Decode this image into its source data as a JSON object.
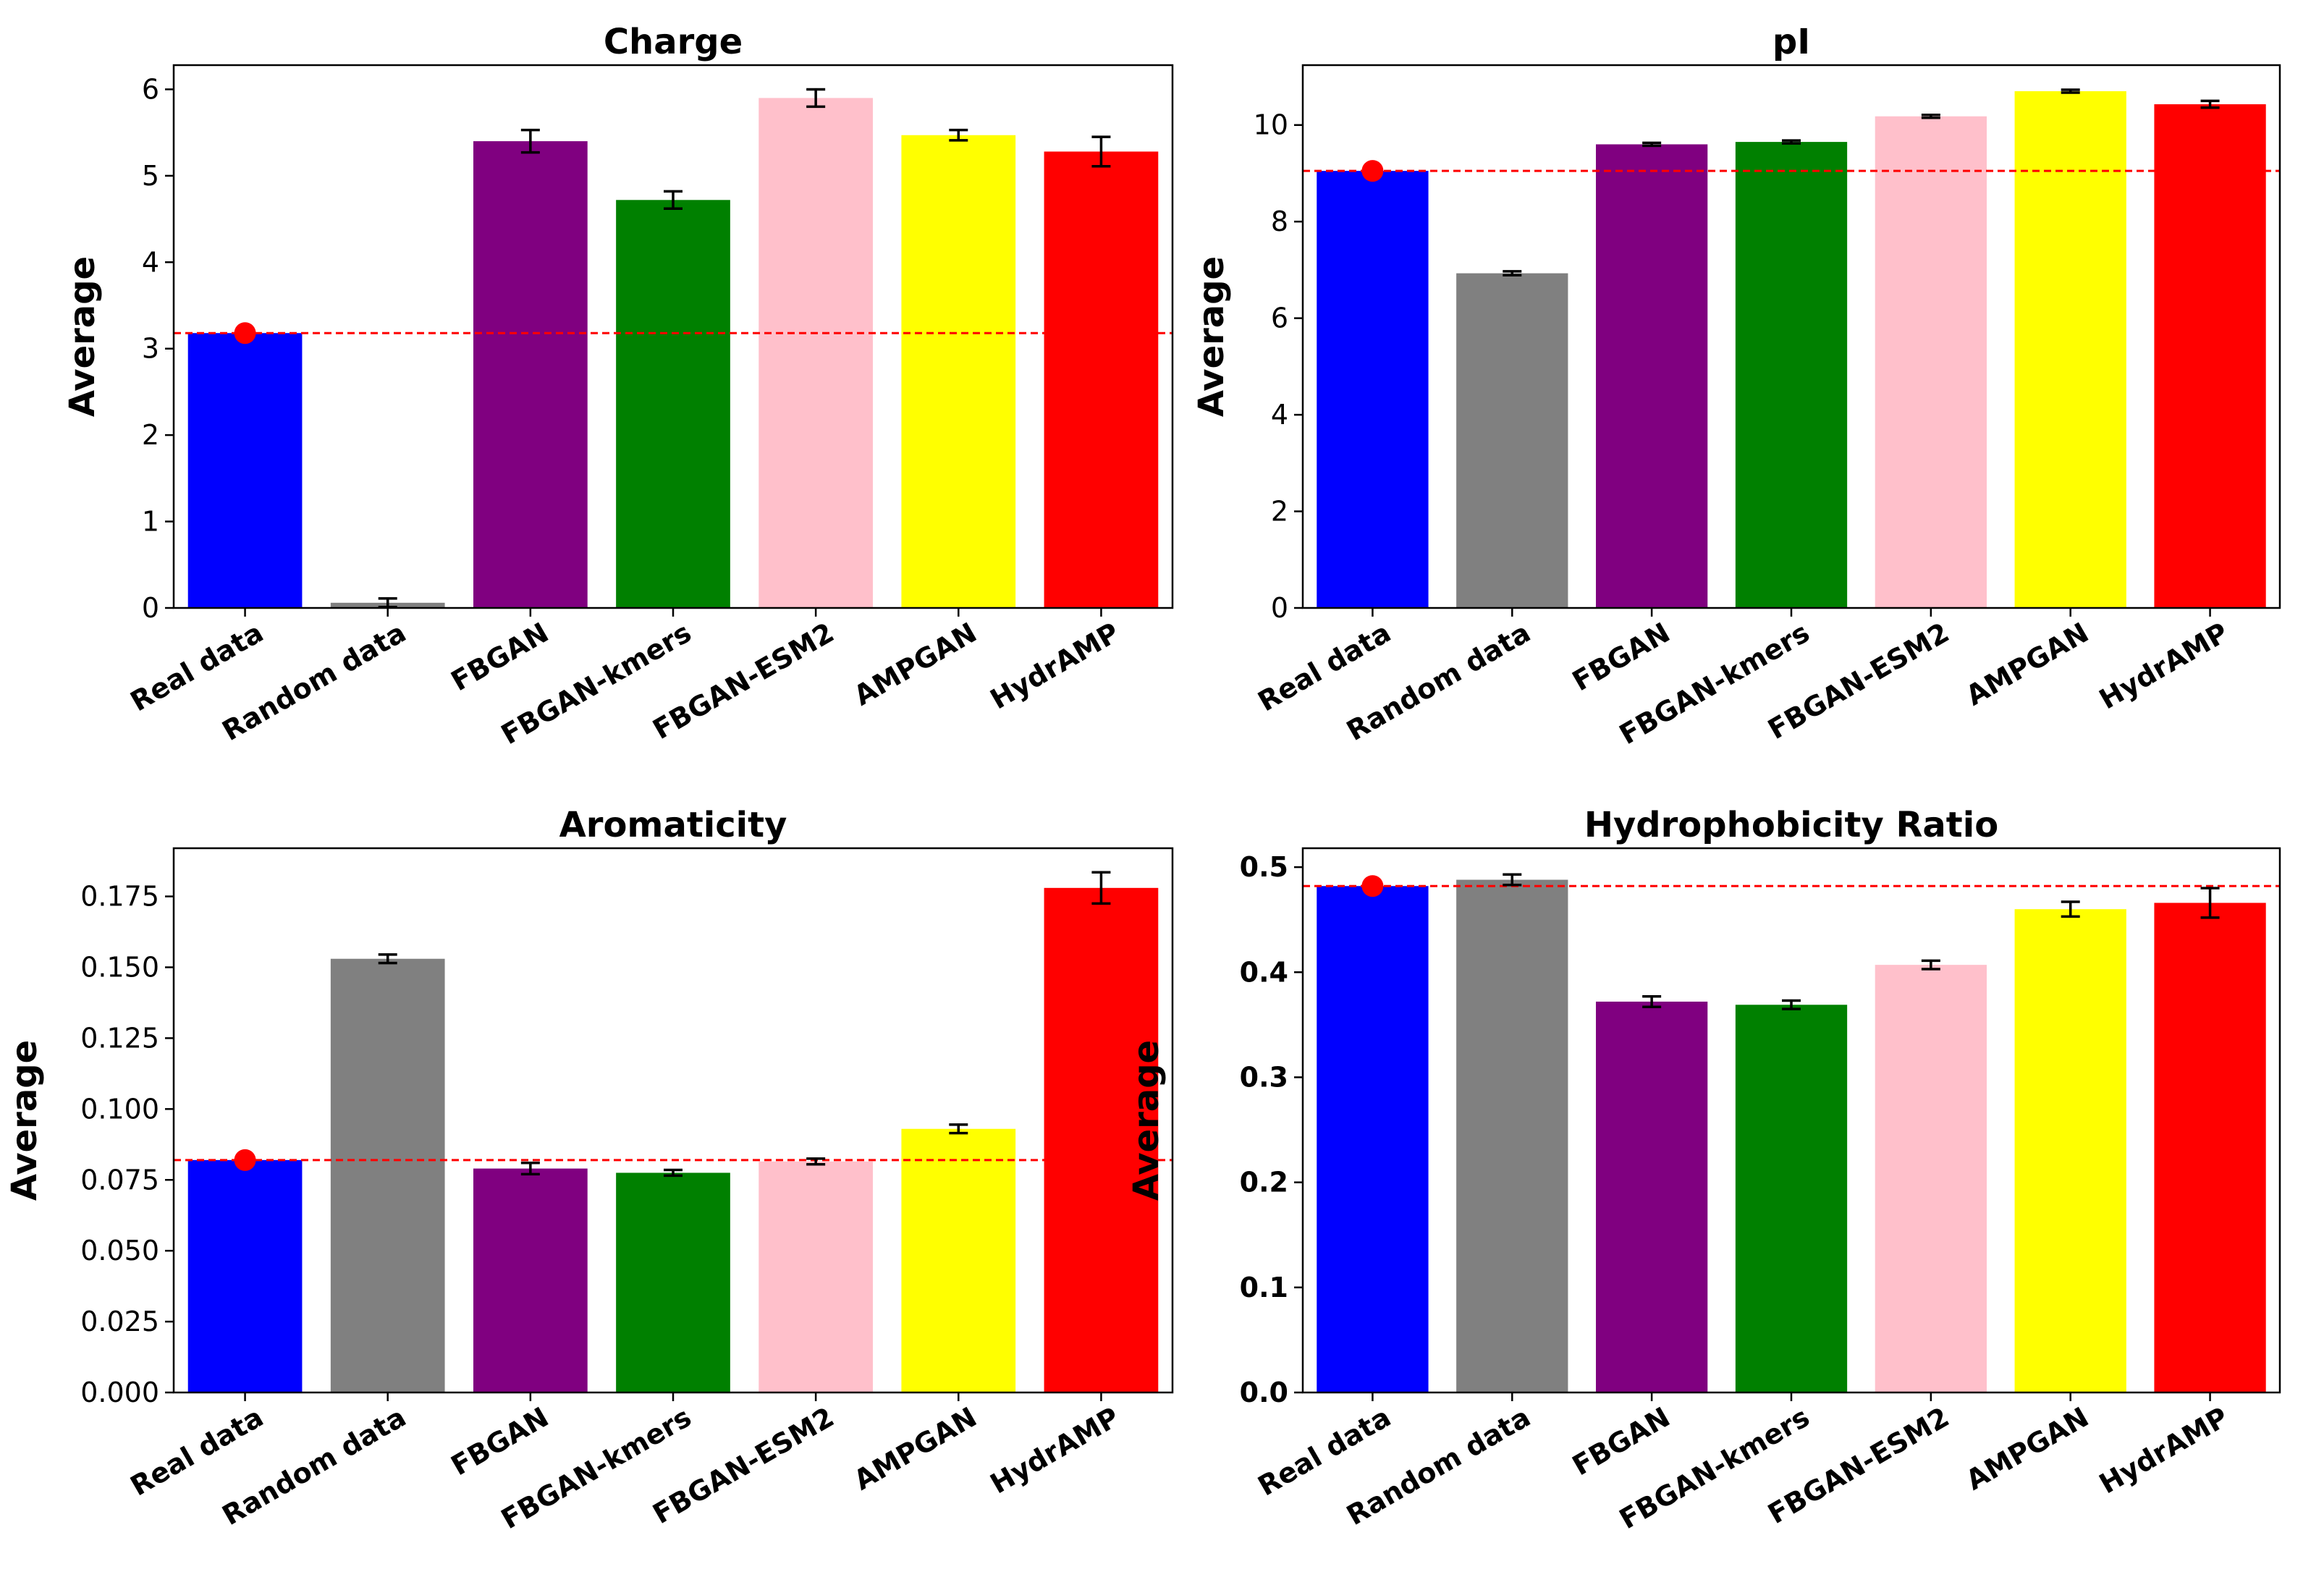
{
  "chart_data": [
    {
      "type": "bar",
      "title": "Charge",
      "ylabel": "Average",
      "categories": [
        "Real data",
        "Random data",
        "FBGAN",
        "FBGAN-kmers",
        "FBGAN-ESM2",
        "AMPGAN",
        "HydrAMP"
      ],
      "values": [
        3.18,
        0.06,
        5.4,
        4.72,
        5.9,
        5.47,
        5.28
      ],
      "errors": [
        0.04,
        0.05,
        0.13,
        0.1,
        0.1,
        0.06,
        0.17
      ],
      "colors": [
        "#0000ff",
        "#808080",
        "#800080",
        "#008000",
        "#ffc0cb",
        "#ffff00",
        "#ff0000"
      ],
      "ylim": [
        0,
        6.28
      ],
      "yticks": [
        0,
        1,
        2,
        3,
        4,
        5,
        6
      ],
      "ytick_labels": [
        "0",
        "1",
        "2",
        "3",
        "4",
        "5",
        "6"
      ],
      "ytick_bold": false,
      "reference_line": 3.18,
      "reference_color": "#ff0000"
    },
    {
      "type": "bar",
      "title": "pI",
      "ylabel": "Average",
      "categories": [
        "Real data",
        "Random data",
        "FBGAN",
        "FBGAN-kmers",
        "FBGAN-ESM2",
        "AMPGAN",
        "HydrAMP"
      ],
      "values": [
        9.05,
        6.93,
        9.6,
        9.65,
        10.18,
        10.7,
        10.43
      ],
      "errors": [
        0.03,
        0.04,
        0.03,
        0.03,
        0.03,
        0.03,
        0.07
      ],
      "colors": [
        "#0000ff",
        "#808080",
        "#800080",
        "#008000",
        "#ffc0cb",
        "#ffff00",
        "#ff0000"
      ],
      "ylim": [
        0,
        11.24
      ],
      "yticks": [
        0,
        2,
        4,
        6,
        8,
        10
      ],
      "ytick_labels": [
        "0",
        "2",
        "4",
        "6",
        "8",
        "10"
      ],
      "ytick_bold": false,
      "reference_line": 9.05,
      "reference_color": "#ff0000"
    },
    {
      "type": "bar",
      "title": "Aromaticity",
      "ylabel": "Average",
      "categories": [
        "Real data",
        "Random data",
        "FBGAN",
        "FBGAN-kmers",
        "FBGAN-ESM2",
        "AMPGAN",
        "HydrAMP"
      ],
      "values": [
        0.082,
        0.153,
        0.079,
        0.0775,
        0.0815,
        0.093,
        0.178
      ],
      "errors": [
        0.001,
        0.0015,
        0.002,
        0.001,
        0.001,
        0.0015,
        0.0055
      ],
      "colors": [
        "#0000ff",
        "#808080",
        "#800080",
        "#008000",
        "#ffc0cb",
        "#ffff00",
        "#ff0000"
      ],
      "ylim": [
        0,
        0.192
      ],
      "yticks": [
        0,
        0.025,
        0.05,
        0.075,
        0.1,
        0.125,
        0.15,
        0.175
      ],
      "ytick_labels": [
        "0.000",
        "0.025",
        "0.050",
        "0.075",
        "0.100",
        "0.125",
        "0.150",
        "0.175"
      ],
      "ytick_bold": false,
      "reference_line": 0.082,
      "reference_color": "#ff0000"
    },
    {
      "type": "bar",
      "title": "Hydrophobicity Ratio",
      "ylabel": "Average",
      "categories": [
        "Real data",
        "Random data",
        "FBGAN",
        "FBGAN-kmers",
        "FBGAN-ESM2",
        "AMPGAN",
        "HydrAMP"
      ],
      "values": [
        0.482,
        0.488,
        0.372,
        0.369,
        0.407,
        0.46,
        0.466
      ],
      "errors": [
        0.003,
        0.005,
        0.005,
        0.004,
        0.004,
        0.007,
        0.014
      ],
      "colors": [
        "#0000ff",
        "#808080",
        "#800080",
        "#008000",
        "#ffc0cb",
        "#ffff00",
        "#ff0000"
      ],
      "ylim": [
        0,
        0.518
      ],
      "yticks": [
        0,
        0.1,
        0.2,
        0.3,
        0.4,
        0.5
      ],
      "ytick_labels": [
        "0.0",
        "0.1",
        "0.2",
        "0.3",
        "0.4",
        "0.5"
      ],
      "ytick_bold": true,
      "reference_line": 0.482,
      "reference_color": "#ff0000"
    }
  ]
}
